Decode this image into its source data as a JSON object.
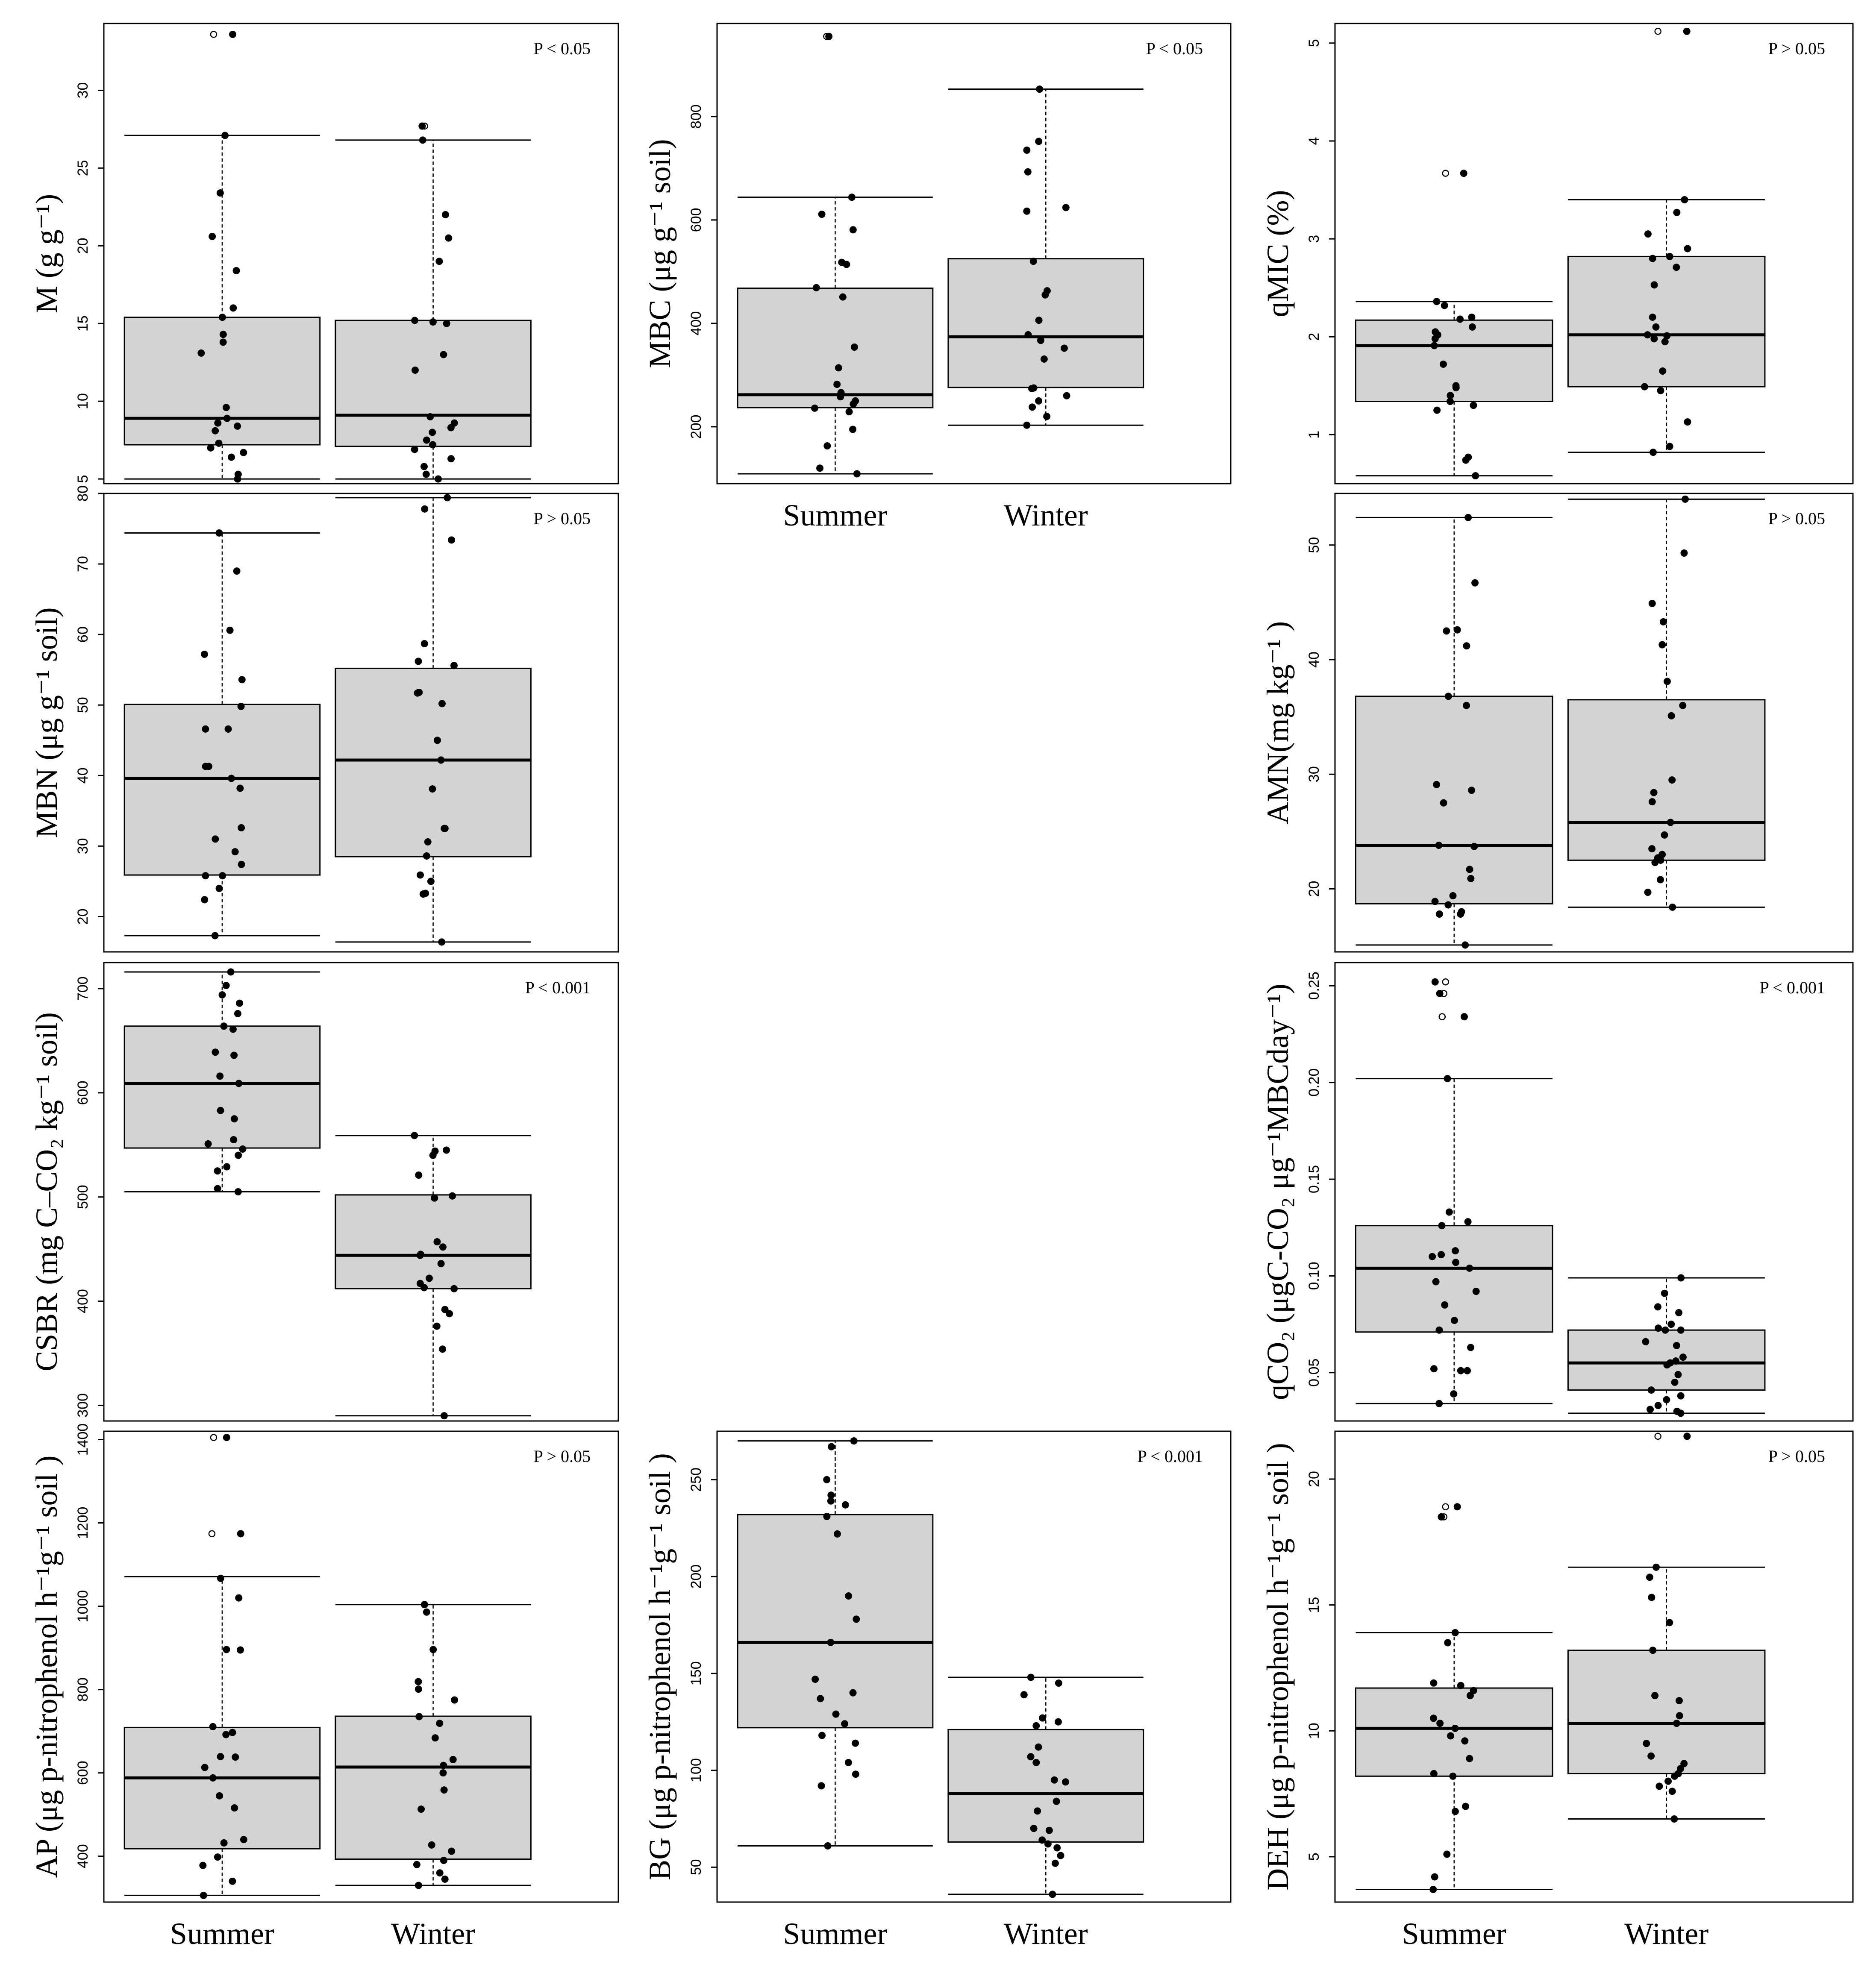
{
  "figure": {
    "category_labels": [
      "Summer",
      "Winter"
    ]
  },
  "chart_data": [
    {
      "id": "M",
      "type": "box",
      "ylabel": "M (g g⁻¹)",
      "p_text": "P < 0.05",
      "ylim": [
        4.7,
        34.3
      ],
      "yticks": [
        5,
        10,
        15,
        20,
        25,
        30
      ],
      "boxes": [
        {
          "category": "Summer",
          "q1": 7.2,
          "median": 8.9,
          "q3": 15.4,
          "lower_whisker": 5.0,
          "upper_whisker": 27.1,
          "outliers": [
            33.6
          ]
        },
        {
          "category": "Winter",
          "q1": 7.1,
          "median": 9.1,
          "q3": 15.2,
          "lower_whisker": 5.0,
          "upper_whisker": 26.8,
          "outliers": [
            27.7
          ]
        }
      ],
      "points": [
        [
          33.6,
          27.1,
          23.4,
          20.6,
          18.4,
          16.0,
          15.4,
          14.3,
          13.8,
          13.1,
          9.6,
          8.9,
          8.6,
          8.4,
          8.1,
          7.3,
          7.0,
          6.7,
          6.4,
          5.3,
          5.0
        ],
        [
          27.7,
          26.8,
          22.0,
          20.5,
          19.0,
          15.2,
          15.1,
          15.0,
          13.0,
          12.0,
          9.0,
          8.6,
          8.3,
          8.0,
          7.5,
          7.2,
          6.9,
          6.3,
          5.8,
          5.3,
          5.0
        ]
      ]
    },
    {
      "id": "MBC",
      "type": "box",
      "ylabel": "MBC (μg g⁻¹ soil)",
      "p_text": "P < 0.05",
      "ylim": [
        90,
        980
      ],
      "yticks": [
        200,
        400,
        600,
        800
      ],
      "boxes": [
        {
          "category": "Summer",
          "q1": 237,
          "median": 262,
          "q3": 468,
          "lower_whisker": 109,
          "upper_whisker": 644,
          "outliers": [
            955
          ]
        },
        {
          "category": "Winter",
          "q1": 276,
          "median": 374,
          "q3": 525,
          "lower_whisker": 203,
          "upper_whisker": 853,
          "outliers": []
        }
      ],
      "points": [
        [
          955,
          644,
          611,
          581,
          518,
          514,
          469,
          451,
          354,
          314,
          282,
          266,
          258,
          250,
          244,
          236,
          229,
          195,
          163,
          120,
          109
        ],
        [
          853,
          752,
          735,
          693,
          624,
          617,
          520,
          463,
          455,
          406,
          378,
          367,
          352,
          331,
          275,
          274,
          260,
          250,
          238,
          220,
          203
        ]
      ]
    },
    {
      "id": "qMIC",
      "type": "box",
      "ylabel": "qMIC (%)",
      "p_text": "P > 0.05",
      "ylim": [
        0.5,
        5.2
      ],
      "yticks": [
        1,
        2,
        3,
        4,
        5
      ],
      "boxes": [
        {
          "category": "Summer",
          "q1": 1.34,
          "median": 1.91,
          "q3": 2.17,
          "lower_whisker": 0.58,
          "upper_whisker": 2.36,
          "outliers": [
            3.67
          ]
        },
        {
          "category": "Winter",
          "q1": 1.49,
          "median": 2.02,
          "q3": 2.82,
          "lower_whisker": 0.82,
          "upper_whisker": 3.4,
          "outliers": [
            5.12
          ]
        }
      ],
      "points": [
        [
          3.67,
          2.36,
          2.32,
          2.2,
          2.18,
          2.1,
          2.05,
          2.02,
          1.98,
          1.91,
          1.72,
          1.5,
          1.48,
          1.4,
          1.34,
          1.3,
          1.25,
          0.77,
          0.74,
          0.58
        ],
        [
          5.12,
          3.4,
          3.27,
          3.05,
          2.9,
          2.82,
          2.8,
          2.71,
          2.53,
          2.2,
          2.1,
          2.02,
          2.01,
          1.98,
          1.95,
          1.65,
          1.49,
          1.45,
          1.13,
          0.88,
          0.82
        ]
      ]
    },
    {
      "id": "MBN",
      "type": "box",
      "ylabel": "MBN (μg g⁻¹ soil)",
      "p_text": "P > 0.05",
      "ylim": [
        15,
        80
      ],
      "yticks": [
        20,
        30,
        40,
        50,
        60,
        70,
        80
      ],
      "boxes": [
        {
          "category": "Summer",
          "q1": 25.9,
          "median": 39.6,
          "q3": 50.1,
          "lower_whisker": 17.3,
          "upper_whisker": 74.4,
          "outliers": []
        },
        {
          "category": "Winter",
          "q1": 28.5,
          "median": 42.2,
          "q3": 55.2,
          "lower_whisker": 16.4,
          "upper_whisker": 79.4,
          "outliers": []
        }
      ],
      "points": [
        [
          74.4,
          69.0,
          60.6,
          57.2,
          53.6,
          49.8,
          46.6,
          46.6,
          41.3,
          41.3,
          39.6,
          38.2,
          32.6,
          31.0,
          29.2,
          27.4,
          25.8,
          25.8,
          24.0,
          22.4,
          17.3
        ],
        [
          79.4,
          77.8,
          73.4,
          58.7,
          56.2,
          55.6,
          51.8,
          51.7,
          50.2,
          45.0,
          42.2,
          38.1,
          32.5,
          32.5,
          30.6,
          28.6,
          25.9,
          25.0,
          23.3,
          23.2,
          16.4
        ]
      ]
    },
    {
      "id": "AMN",
      "type": "box",
      "ylabel": "AMN(mg kg⁻¹ )",
      "p_text": "P > 0.05",
      "ylim": [
        14.5,
        54.5
      ],
      "yticks": [
        20,
        30,
        40,
        50
      ],
      "boxes": [
        {
          "category": "Summer",
          "q1": 18.7,
          "median": 23.8,
          "q3": 36.8,
          "lower_whisker": 15.1,
          "upper_whisker": 52.4,
          "outliers": []
        },
        {
          "category": "Winter",
          "q1": 22.5,
          "median": 25.8,
          "q3": 36.5,
          "lower_whisker": 18.4,
          "upper_whisker": 54.0,
          "outliers": []
        }
      ],
      "points": [
        [
          52.4,
          46.7,
          42.6,
          42.5,
          41.2,
          36.8,
          36.0,
          29.1,
          28.6,
          27.5,
          23.8,
          23.7,
          21.7,
          20.9,
          19.4,
          18.9,
          18.6,
          18.0,
          17.8,
          17.8,
          15.1
        ],
        [
          54.0,
          49.3,
          44.9,
          43.3,
          41.3,
          38.1,
          36.0,
          35.1,
          29.5,
          28.4,
          27.6,
          25.8,
          24.7,
          23.5,
          23.0,
          22.7,
          22.5,
          22.3,
          20.8,
          19.7,
          18.4
        ]
      ]
    },
    {
      "id": "CSBR",
      "type": "box",
      "ylabel": "CSBR (mg C–CO₂ kg⁻¹ soil)",
      "p_text": "P < 0.001",
      "ylim": [
        285,
        725
      ],
      "yticks": [
        300,
        400,
        500,
        600,
        700
      ],
      "boxes": [
        {
          "category": "Summer",
          "q1": 547,
          "median": 609,
          "q3": 664,
          "lower_whisker": 505,
          "upper_whisker": 716,
          "outliers": []
        },
        {
          "category": "Winter",
          "q1": 412,
          "median": 444,
          "q3": 502,
          "lower_whisker": 290,
          "upper_whisker": 559,
          "outliers": []
        }
      ],
      "points": [
        [
          716,
          703,
          694,
          686,
          676,
          664,
          661,
          639,
          636,
          616,
          609,
          583,
          575,
          555,
          551,
          546,
          540,
          529,
          525,
          508,
          505
        ],
        [
          559,
          545,
          544,
          540,
          521,
          501,
          499,
          457,
          452,
          445,
          444,
          436,
          422,
          417,
          413,
          412,
          392,
          388,
          376,
          354,
          290
        ]
      ]
    },
    {
      "id": "qCO2",
      "type": "box",
      "ylabel": "qCO₂ (μgC-CO₂ μg⁻¹MBCday⁻¹)",
      "p_text": "P < 0.001",
      "ylim": [
        0.025,
        0.262
      ],
      "yticks": [
        0.05,
        0.1,
        0.15,
        0.2,
        0.25
      ],
      "boxes": [
        {
          "category": "Summer",
          "q1": 0.071,
          "median": 0.104,
          "q3": 0.126,
          "lower_whisker": 0.034,
          "upper_whisker": 0.202,
          "outliers": [
            0.252,
            0.246,
            0.234
          ]
        },
        {
          "category": "Winter",
          "q1": 0.041,
          "median": 0.055,
          "q3": 0.072,
          "lower_whisker": 0.029,
          "upper_whisker": 0.099,
          "outliers": []
        }
      ],
      "points": [
        [
          0.252,
          0.246,
          0.234,
          0.202,
          0.133,
          0.128,
          0.126,
          0.113,
          0.111,
          0.11,
          0.107,
          0.104,
          0.097,
          0.092,
          0.085,
          0.077,
          0.072,
          0.063,
          0.052,
          0.051,
          0.051,
          0.039,
          0.034
        ],
        [
          0.099,
          0.091,
          0.084,
          0.081,
          0.075,
          0.073,
          0.072,
          0.072,
          0.066,
          0.064,
          0.058,
          0.056,
          0.055,
          0.054,
          0.049,
          0.045,
          0.041,
          0.038,
          0.036,
          0.033,
          0.031,
          0.03,
          0.029
        ]
      ]
    },
    {
      "id": "AP",
      "type": "box",
      "ylabel": "AP (μg p-nitrophenol h⁻¹g⁻¹ soil )",
      "p_text": "P > 0.05",
      "ylim": [
        290,
        1420
      ],
      "yticks": [
        400,
        600,
        800,
        1000,
        1200,
        1400
      ],
      "boxes": [
        {
          "category": "Summer",
          "q1": 418,
          "median": 588,
          "q3": 709,
          "lower_whisker": 306,
          "upper_whisker": 1071,
          "outliers": [
            1405,
            1174
          ]
        },
        {
          "category": "Winter",
          "q1": 393,
          "median": 614,
          "q3": 736,
          "lower_whisker": 330,
          "upper_whisker": 1004,
          "outliers": []
        }
      ],
      "points": [
        [
          1405,
          1174,
          1067,
          1020,
          896,
          895,
          711,
          697,
          692,
          639,
          638,
          613,
          588,
          545,
          516,
          440,
          432,
          398,
          378,
          340,
          306
        ],
        [
          1004,
          986,
          896,
          819,
          801,
          775,
          735,
          719,
          684,
          632,
          618,
          600,
          559,
          513,
          427,
          412,
          390,
          380,
          360,
          345,
          330
        ]
      ]
    },
    {
      "id": "BG",
      "type": "box",
      "ylabel": "BG (μg p-nitrophenol h⁻¹g⁻¹ soil )",
      "p_text": "P < 0.001",
      "ylim": [
        32,
        275
      ],
      "yticks": [
        50,
        100,
        150,
        200,
        250
      ],
      "boxes": [
        {
          "category": "Summer",
          "q1": 122,
          "median": 166,
          "q3": 232,
          "lower_whisker": 61,
          "upper_whisker": 270,
          "outliers": []
        },
        {
          "category": "Winter",
          "q1": 63,
          "median": 88,
          "q3": 121,
          "lower_whisker": 36,
          "upper_whisker": 148,
          "outliers": []
        }
      ],
      "points": [
        [
          270,
          267,
          250,
          242,
          239,
          237,
          231,
          222,
          190,
          178,
          166,
          147,
          140,
          137,
          129,
          124,
          118,
          114,
          104,
          98,
          92,
          61
        ],
        [
          148,
          145,
          139,
          127,
          125,
          123,
          112,
          107,
          104,
          95,
          94,
          84,
          79,
          70,
          69,
          64,
          62,
          60,
          56,
          52,
          36
        ]
      ]
    },
    {
      "id": "DEH",
      "type": "box",
      "ylabel": "DEH (μg p-nitrophenol h⁻¹g⁻¹ soil )",
      "p_text": "P > 0.05",
      "ylim": [
        3.2,
        21.9
      ],
      "yticks": [
        5,
        10,
        15,
        20
      ],
      "boxes": [
        {
          "category": "Summer",
          "q1": 8.2,
          "median": 10.1,
          "q3": 11.7,
          "lower_whisker": 3.7,
          "upper_whisker": 13.9,
          "outliers": [
            18.9,
            18.5
          ]
        },
        {
          "category": "Winter",
          "q1": 8.3,
          "median": 10.3,
          "q3": 13.2,
          "lower_whisker": 6.5,
          "upper_whisker": 16.5,
          "outliers": [
            21.7
          ]
        }
      ],
      "points": [
        [
          18.9,
          18.5,
          13.9,
          13.5,
          11.9,
          11.8,
          11.6,
          11.4,
          10.5,
          10.3,
          10.1,
          9.8,
          9.6,
          8.9,
          8.3,
          8.2,
          7.0,
          6.8,
          5.1,
          4.2,
          3.7
        ],
        [
          21.7,
          16.5,
          16.1,
          15.3,
          14.3,
          13.2,
          11.4,
          11.2,
          10.6,
          10.3,
          9.5,
          9.0,
          8.7,
          8.5,
          8.3,
          8.2,
          8.0,
          7.8,
          7.6,
          6.5
        ]
      ]
    }
  ]
}
